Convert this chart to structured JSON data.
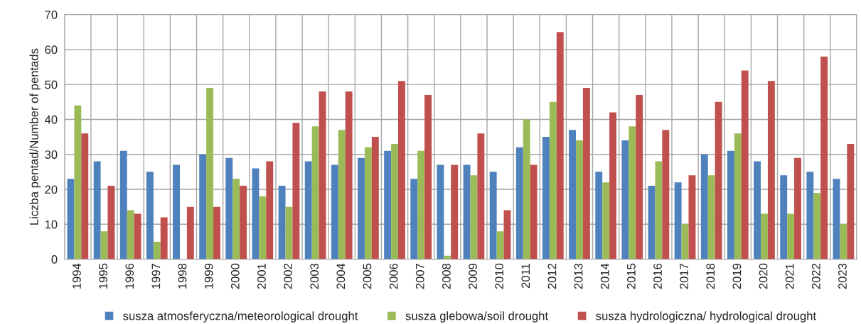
{
  "chart_data": {
    "type": "bar",
    "ylabel": "Liczba pentad/Number of pentads",
    "categories": [
      "1994",
      "1995",
      "1996",
      "1997",
      "1998",
      "1999",
      "2000",
      "2001",
      "2002",
      "2003",
      "2004",
      "2005",
      "2006",
      "2007",
      "2008",
      "2009",
      "2010",
      "2011",
      "2012",
      "2013",
      "2014",
      "2015",
      "2016",
      "2017",
      "2018",
      "2019",
      "2020",
      "2021",
      "2022",
      "2023"
    ],
    "series": [
      {
        "name": "susza atmosferyczna/meteorological drought",
        "color": "#4f81bd",
        "values": [
          23,
          28,
          31,
          25,
          27,
          30,
          29,
          26,
          21,
          28,
          27,
          29,
          31,
          23,
          27,
          27,
          25,
          32,
          35,
          37,
          25,
          34,
          21,
          22,
          30,
          31,
          28,
          24,
          25,
          23
        ]
      },
      {
        "name": "susza glebowa/soil drought",
        "color": "#9bbb59",
        "values": [
          44,
          8,
          14,
          5,
          null,
          49,
          23,
          18,
          15,
          38,
          37,
          32,
          33,
          31,
          1,
          24,
          8,
          40,
          45,
          34,
          22,
          38,
          28,
          10,
          24,
          36,
          13,
          13,
          19,
          10
        ]
      },
      {
        "name": "susza hydrologiczna/ hydrological drought",
        "color": "#c0504d",
        "values": [
          36,
          21,
          13,
          12,
          15,
          15,
          21,
          28,
          39,
          48,
          48,
          35,
          51,
          47,
          27,
          36,
          14,
          27,
          65,
          49,
          42,
          47,
          37,
          24,
          45,
          54,
          51,
          29,
          58,
          33
        ]
      }
    ],
    "ylim": [
      0,
      70
    ],
    "yticks": [
      0,
      10,
      20,
      30,
      40,
      50,
      60,
      70
    ],
    "grid": true,
    "legend": "bottom"
  }
}
